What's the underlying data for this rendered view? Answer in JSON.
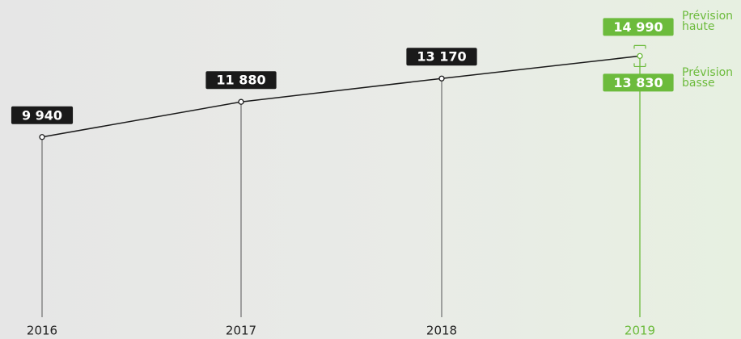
{
  "chart_data": {
    "type": "line",
    "categories": [
      "2016",
      "2017",
      "2018",
      "2019"
    ],
    "series": [
      {
        "color": "#1a1a1a",
        "values": [
          9940,
          11880,
          13170,
          14410
        ],
        "value_labels": [
          "9 940",
          "11 880",
          "13 170",
          null
        ]
      }
    ],
    "forecast": {
      "color": "#6cbb3c",
      "high": 14990,
      "high_label": "14 990",
      "high_name": "Prévision haute",
      "low": 13830,
      "low_label": "13 830",
      "low_name": "Prévision basse"
    },
    "ylim": [
      0,
      17500
    ]
  }
}
